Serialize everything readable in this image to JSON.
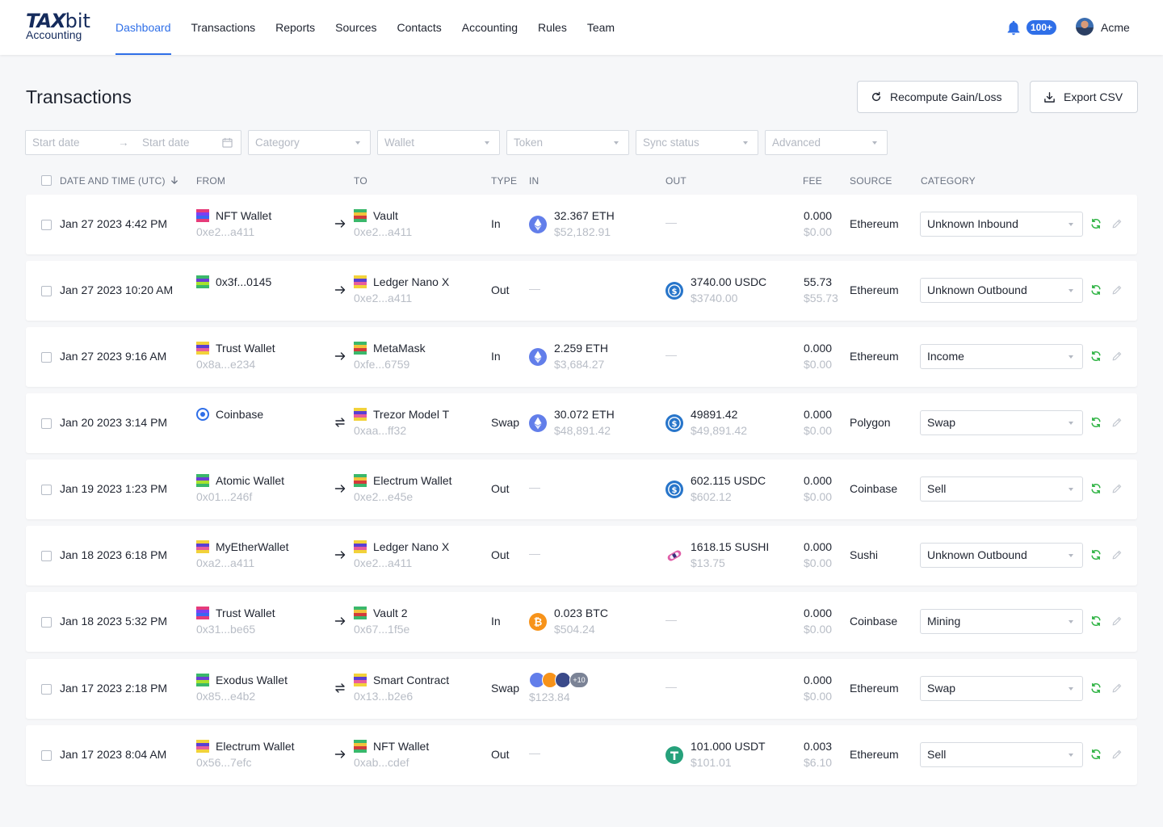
{
  "nav": {
    "brand": "TAX",
    "brand_bit": "bit",
    "brand_sub": "Accounting",
    "items": [
      {
        "label": "Dashboard",
        "active": true
      },
      {
        "label": "Transactions",
        "active": false
      },
      {
        "label": "Reports",
        "active": false
      },
      {
        "label": "Sources",
        "active": false
      },
      {
        "label": "Contacts",
        "active": false
      },
      {
        "label": "Accounting",
        "active": false
      },
      {
        "label": "Rules",
        "active": false
      },
      {
        "label": "Team",
        "active": false
      }
    ],
    "notification_badge": "100+",
    "user_name": "Acme"
  },
  "page": {
    "title": "Transactions",
    "recompute_label": "Recompute Gain/Loss",
    "export_label": "Export CSV"
  },
  "filters": {
    "start_date_placeholder": "Start date",
    "end_date_placeholder": "Start date",
    "category_placeholder": "Category",
    "wallet_placeholder": "Wallet",
    "token_placeholder": "Token",
    "sync_status_placeholder": "Sync status",
    "advanced_placeholder": "Advanced"
  },
  "table": {
    "headers": {
      "date": "DATE AND TIME (UTC)",
      "from": "FROM",
      "to": "TO",
      "type": "TYPE",
      "in": "IN",
      "out": "OUT",
      "fee": "FEE",
      "source": "SOURCE",
      "category": "CATEGORY"
    },
    "rows": [
      {
        "date": "Jan 27 2023 4:42 PM",
        "from_name": "NFT Wallet",
        "from_addr": "0xe2...a411",
        "from_icon": "pixel-avatar-icon",
        "to_name": "Vault",
        "to_addr": "0xe2...a411",
        "to_icon": "pixel-avatar-icon",
        "direction": "arrow-right-icon",
        "type": "In",
        "in_amount": "32.367 ETH",
        "in_value": "$52,182.91",
        "in_coin": "ethereum-icon",
        "out_amount": "",
        "out_value": "",
        "out_coin": "",
        "fee": "0.000",
        "fee_value": "$0.00",
        "source": "Ethereum",
        "category": "Unknown Inbound"
      },
      {
        "date": "Jan 27 2023 10:20 AM",
        "from_name": "0x3f...0145",
        "from_addr": "",
        "from_icon": "pixel-avatar-icon",
        "to_name": "Ledger Nano X",
        "to_addr": "0xe2...a411",
        "to_icon": "pixel-avatar-icon",
        "direction": "arrow-right-icon",
        "type": "Out",
        "in_amount": "",
        "in_value": "",
        "in_coin": "",
        "out_amount": "3740.00 USDC",
        "out_value": "$3740.00",
        "out_coin": "usdc-icon",
        "fee": "55.73",
        "fee_value": "$55.73",
        "source": "Ethereum",
        "category": "Unknown Outbound"
      },
      {
        "date": "Jan 27 2023 9:16 AM",
        "from_name": "Trust Wallet",
        "from_addr": "0x8a...e234",
        "from_icon": "pixel-avatar-icon",
        "to_name": "MetaMask",
        "to_addr": "0xfe...6759",
        "to_icon": "pixel-avatar-icon",
        "direction": "arrow-right-icon",
        "type": "In",
        "in_amount": "2.259 ETH",
        "in_value": "$3,684.27",
        "in_coin": "ethereum-icon",
        "out_amount": "",
        "out_value": "",
        "out_coin": "",
        "fee": "0.000",
        "fee_value": "$0.00",
        "source": "Ethereum",
        "category": "Income"
      },
      {
        "date": "Jan 20 2023 3:14 PM",
        "from_name": "Coinbase",
        "from_addr": "",
        "from_icon": "coinbase-icon",
        "to_name": "Trezor Model T",
        "to_addr": "0xaa...ff32",
        "to_icon": "pixel-avatar-icon",
        "direction": "swap-icon",
        "type": "Swap",
        "in_amount": "30.072 ETH",
        "in_value": "$48,891.42",
        "in_coin": "ethereum-icon",
        "out_amount": "49891.42",
        "out_value": "$49,891.42",
        "out_coin": "usdc-icon",
        "fee": "0.000",
        "fee_value": "$0.00",
        "source": "Polygon",
        "category": "Swap"
      },
      {
        "date": "Jan 19 2023 1:23 PM",
        "from_name": "Atomic Wallet",
        "from_addr": "0x01...246f",
        "from_icon": "pixel-avatar-icon",
        "to_name": "Electrum Wallet",
        "to_addr": "0xe2...e45e",
        "to_icon": "pixel-avatar-icon",
        "direction": "arrow-right-icon",
        "type": "Out",
        "in_amount": "",
        "in_value": "",
        "in_coin": "",
        "out_amount": "602.115 USDC",
        "out_value": "$602.12",
        "out_coin": "usdc-icon",
        "fee": "0.000",
        "fee_value": "$0.00",
        "source": "Coinbase",
        "category": "Sell"
      },
      {
        "date": "Jan 18 2023 6:18 PM",
        "from_name": "MyEtherWallet",
        "from_addr": "0xa2...a411",
        "from_icon": "pixel-avatar-icon",
        "to_name": "Ledger Nano X",
        "to_addr": "0xe2...a411",
        "to_icon": "pixel-avatar-icon",
        "direction": "arrow-right-icon",
        "type": "Out",
        "in_amount": "",
        "in_value": "",
        "in_coin": "",
        "out_amount": "1618.15 SUSHI",
        "out_value": "$13.75",
        "out_coin": "sushi-icon",
        "fee": "0.000",
        "fee_value": "$0.00",
        "source": "Sushi",
        "category": "Unknown Outbound"
      },
      {
        "date": "Jan 18 2023 5:32 PM",
        "from_name": "Trust Wallet",
        "from_addr": "0x31...be65",
        "from_icon": "pixel-avatar-icon",
        "to_name": "Vault 2",
        "to_addr": "0x67...1f5e",
        "to_icon": "pixel-avatar-icon",
        "direction": "arrow-right-icon",
        "type": "In",
        "in_amount": "0.023 BTC",
        "in_value": "$504.24",
        "in_coin": "bitcoin-icon",
        "out_amount": "",
        "out_value": "",
        "out_coin": "",
        "fee": "0.000",
        "fee_value": "$0.00",
        "source": "Coinbase",
        "category": "Mining"
      },
      {
        "date": "Jan 17 2023 2:18 PM",
        "from_name": "Exodus Wallet",
        "from_addr": "0x85...e4b2",
        "from_icon": "pixel-avatar-icon",
        "to_name": "Smart Contract",
        "to_addr": "0x13...b2e6",
        "to_icon": "pixel-avatar-icon",
        "direction": "swap-icon",
        "type": "Swap",
        "in_amount": "",
        "in_value": "$123.84",
        "in_coin": "multi-coin-icon",
        "in_more": "+10",
        "out_amount": "",
        "out_value": "",
        "out_coin": "",
        "fee": "0.000",
        "fee_value": "$0.00",
        "source": "Ethereum",
        "category": "Swap"
      },
      {
        "date": "Jan 17 2023 8:04 AM",
        "from_name": "Electrum Wallet",
        "from_addr": "0x56...7efc",
        "from_icon": "pixel-avatar-icon",
        "to_name": "NFT Wallet",
        "to_addr": "0xab...cdef",
        "to_icon": "pixel-avatar-icon",
        "direction": "arrow-right-icon",
        "type": "Out",
        "in_amount": "",
        "in_value": "",
        "in_coin": "",
        "out_amount": "101.000 USDT",
        "out_value": "$101.01",
        "out_coin": "tether-icon",
        "fee": "0.003",
        "fee_value": "$6.10",
        "source": "Ethereum",
        "category": "Sell"
      }
    ]
  },
  "colors": {
    "accent": "#2f6fe8",
    "sync_green": "#2fb344",
    "ethereum": "#627eea",
    "usdc": "#2775ca",
    "bitcoin": "#f7931a",
    "tether": "#26a17b"
  }
}
